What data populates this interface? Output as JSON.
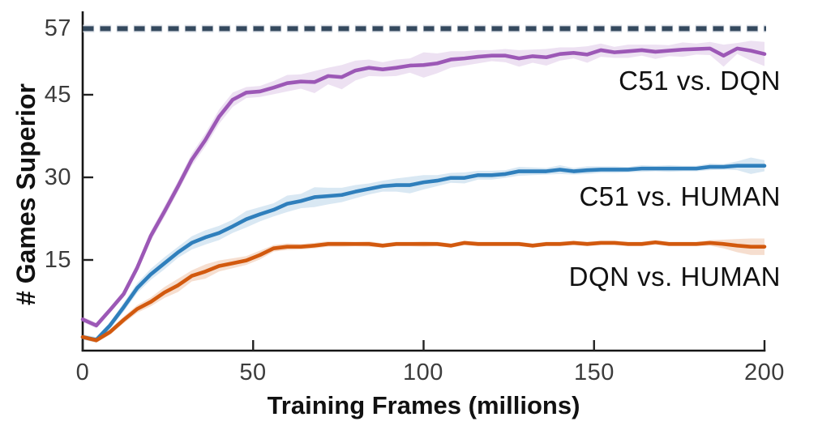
{
  "chart_data": {
    "type": "line",
    "title": "",
    "xlabel": "Training Frames (millions)",
    "ylabel": "# Games Superior",
    "xlim": [
      0,
      200
    ],
    "ylim": [
      -1.5,
      60
    ],
    "x_ticks": [
      0,
      50,
      100,
      150,
      200
    ],
    "y_ticks": [
      57,
      45,
      30,
      15
    ],
    "grid": false,
    "legend_position": "inline-right-labels",
    "reference_line": {
      "y": 57,
      "style": "dashed",
      "color": "#34495e"
    },
    "x": [
      0,
      4,
      8,
      12,
      16,
      20,
      24,
      28,
      32,
      36,
      40,
      44,
      48,
      52,
      56,
      60,
      64,
      68,
      72,
      76,
      80,
      84,
      88,
      92,
      96,
      100,
      104,
      108,
      112,
      116,
      120,
      124,
      128,
      132,
      136,
      140,
      144,
      148,
      152,
      156,
      160,
      164,
      168,
      172,
      176,
      180,
      184,
      188,
      192,
      196,
      200
    ],
    "series": [
      {
        "name": "C51 vs. DQN",
        "color": "#9c58b6",
        "band_opacity": 0.18,
        "y": [
          4.2,
          3.1,
          5.9,
          8.8,
          13.6,
          19.4,
          23.8,
          28.4,
          33.2,
          36.8,
          41.0,
          44.1,
          45.4,
          45.6,
          46.3,
          47.1,
          47.4,
          47.3,
          48.4,
          48.2,
          49.4,
          49.9,
          49.6,
          49.9,
          50.3,
          50.4,
          50.7,
          51.4,
          51.6,
          51.9,
          52.1,
          52.1,
          51.6,
          52.0,
          51.8,
          52.4,
          52.6,
          52.3,
          53.1,
          52.7,
          52.9,
          53.1,
          52.8,
          53.0,
          53.2,
          53.3,
          53.4,
          52.1,
          53.4,
          53.0,
          52.4
        ],
        "band": [
          0.5,
          0.5,
          0.5,
          0.6,
          0.8,
          0.9,
          1.0,
          1.0,
          1.1,
          1.2,
          1.3,
          1.3,
          1.0,
          1.0,
          1.2,
          1.5,
          1.3,
          2.0,
          1.5,
          2.2,
          1.8,
          1.5,
          1.3,
          1.5,
          1.3,
          2.3,
          1.8,
          1.5,
          1.3,
          1.2,
          1.0,
          1.2,
          1.5,
          1.2,
          1.5,
          1.2,
          1.0,
          1.5,
          1.2,
          1.0,
          1.2,
          1.0,
          1.3,
          1.0,
          1.3,
          1.0,
          1.2,
          2.0,
          1.0,
          1.8,
          2.2
        ]
      },
      {
        "name": "C51 vs. HUMAN",
        "color": "#2f7fbc",
        "band_opacity": 0.18,
        "y": [
          1.0,
          0.5,
          3.1,
          6.4,
          9.9,
          12.4,
          14.4,
          16.4,
          18.1,
          19.1,
          19.9,
          21.1,
          22.4,
          23.3,
          24.1,
          25.2,
          25.7,
          26.4,
          26.6,
          26.8,
          27.4,
          27.9,
          28.4,
          28.6,
          28.6,
          29.1,
          29.4,
          29.9,
          29.9,
          30.4,
          30.4,
          30.6,
          31.1,
          31.1,
          31.1,
          31.4,
          31.1,
          31.3,
          31.4,
          31.4,
          31.4,
          31.6,
          31.6,
          31.6,
          31.6,
          31.6,
          31.9,
          31.9,
          32.1,
          32.1,
          32.1
        ],
        "band": [
          0.5,
          0.5,
          0.6,
          0.8,
          0.9,
          1.0,
          1.1,
          1.0,
          1.2,
          1.3,
          1.3,
          1.2,
          1.5,
          1.3,
          1.2,
          1.5,
          1.3,
          1.8,
          1.5,
          1.3,
          1.2,
          1.0,
          1.0,
          1.2,
          1.5,
          1.3,
          1.0,
          0.9,
          1.0,
          0.8,
          0.8,
          0.7,
          0.8,
          0.7,
          0.6,
          0.8,
          0.6,
          0.7,
          0.6,
          0.6,
          0.5,
          0.6,
          0.5,
          0.6,
          0.5,
          0.5,
          0.6,
          0.5,
          0.8,
          1.5,
          1.0
        ]
      },
      {
        "name": "DQN vs. HUMAN",
        "color": "#d2590e",
        "band_opacity": 0.2,
        "y": [
          1.0,
          0.4,
          1.9,
          4.1,
          6.1,
          7.4,
          9.1,
          10.4,
          12.1,
          12.9,
          13.9,
          14.4,
          14.9,
          15.9,
          17.1,
          17.4,
          17.4,
          17.6,
          17.9,
          17.9,
          17.9,
          17.9,
          17.6,
          17.9,
          17.9,
          17.9,
          17.9,
          17.6,
          18.1,
          17.9,
          17.9,
          17.9,
          17.9,
          17.6,
          17.9,
          17.9,
          18.1,
          17.9,
          18.1,
          18.1,
          17.9,
          17.9,
          18.2,
          17.9,
          17.9,
          17.9,
          18.1,
          17.9,
          17.6,
          17.4,
          17.4
        ],
        "band": [
          0.4,
          0.4,
          0.5,
          0.6,
          0.7,
          0.8,
          1.0,
          1.2,
          1.0,
          1.3,
          1.0,
          0.9,
          0.8,
          0.8,
          0.6,
          0.6,
          0.5,
          0.5,
          0.5,
          0.5,
          0.4,
          0.5,
          0.4,
          0.4,
          0.4,
          0.5,
          0.4,
          0.4,
          0.4,
          0.4,
          0.4,
          0.4,
          0.4,
          0.4,
          0.4,
          0.4,
          0.4,
          0.4,
          0.4,
          0.4,
          0.4,
          0.4,
          0.4,
          0.4,
          0.4,
          0.4,
          0.5,
          0.8,
          1.2,
          1.5,
          1.5
        ]
      }
    ],
    "colors": {
      "reference": "#34495e",
      "reference_halo": "#dfe3ea",
      "spine": "#151515",
      "tick": "#222222",
      "tick_text": "#3c3c3c",
      "label_text": "#111111"
    }
  }
}
